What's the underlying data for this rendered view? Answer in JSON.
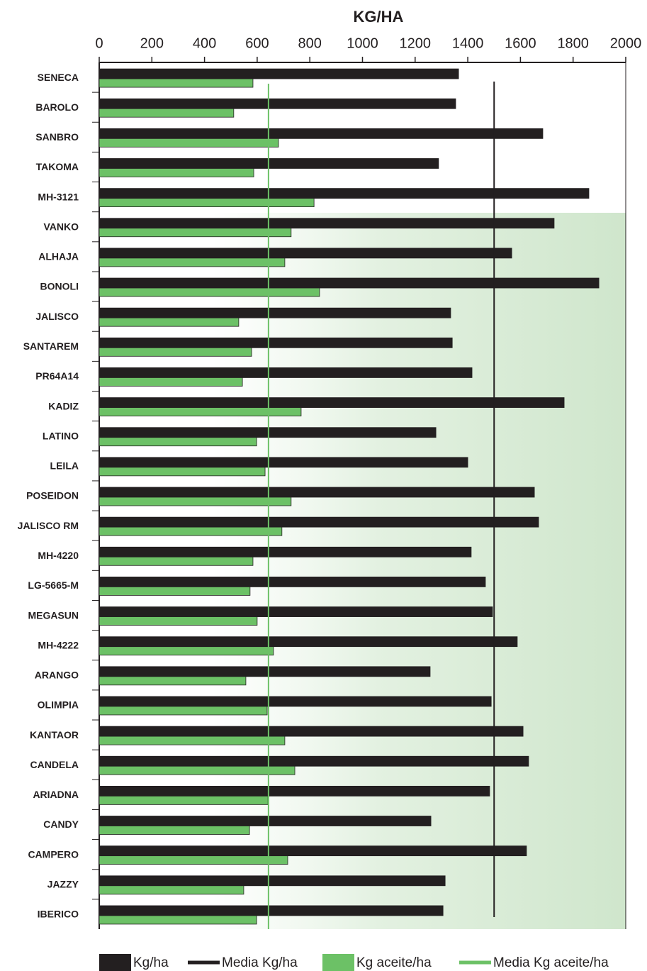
{
  "chart_data": {
    "type": "bar",
    "orientation": "horizontal",
    "title": "KG/HA",
    "categories": [
      "SENECA",
      "BAROLO",
      "SANBRO",
      "TAKOMA",
      "MH-3121",
      "VANKO",
      "ALHAJA",
      "BONOLI",
      "JALISCO",
      "SANTAREM",
      "PR64A14",
      "KADIZ",
      "LATINO",
      "LEILA",
      "POSEIDON",
      "JALISCO RM",
      "MH-4220",
      "LG-5665-M",
      "MEGASUN",
      "MH-4222",
      "ARANGO",
      "OLIMPIA",
      "KANTAOR",
      "CANDELA",
      "ARIADNA",
      "CANDY",
      "CAMPERO",
      "JAZZY",
      "IBERICO"
    ],
    "series": [
      {
        "name": "Kg/ha",
        "color": "#231f20",
        "values": [
          1365,
          1354,
          1685,
          1289,
          1860,
          1728,
          1567,
          1898,
          1335,
          1341,
          1416,
          1766,
          1279,
          1400,
          1653,
          1669,
          1413,
          1467,
          1494,
          1588,
          1257,
          1489,
          1610,
          1631,
          1483,
          1260,
          1623,
          1314,
          1306
        ]
      },
      {
        "name": "Kg aceite/ha",
        "color": "#6cc166",
        "values": [
          584,
          511,
          681,
          587,
          816,
          729,
          705,
          837,
          530,
          579,
          544,
          767,
          598,
          630,
          729,
          694,
          584,
          573,
          600,
          662,
          557,
          638,
          705,
          743,
          641,
          571,
          716,
          549,
          598
        ]
      }
    ],
    "reference_lines": [
      {
        "name": "Media Kg/ha",
        "value": 1500,
        "color": "#231f20"
      },
      {
        "name": "Media Kg aceite/ha",
        "value": 643,
        "color": "#6cc166"
      }
    ],
    "xlim": [
      0,
      2000
    ],
    "xticks": [
      0,
      200,
      400,
      600,
      800,
      1000,
      1200,
      1400,
      1600,
      1800,
      2000
    ]
  }
}
